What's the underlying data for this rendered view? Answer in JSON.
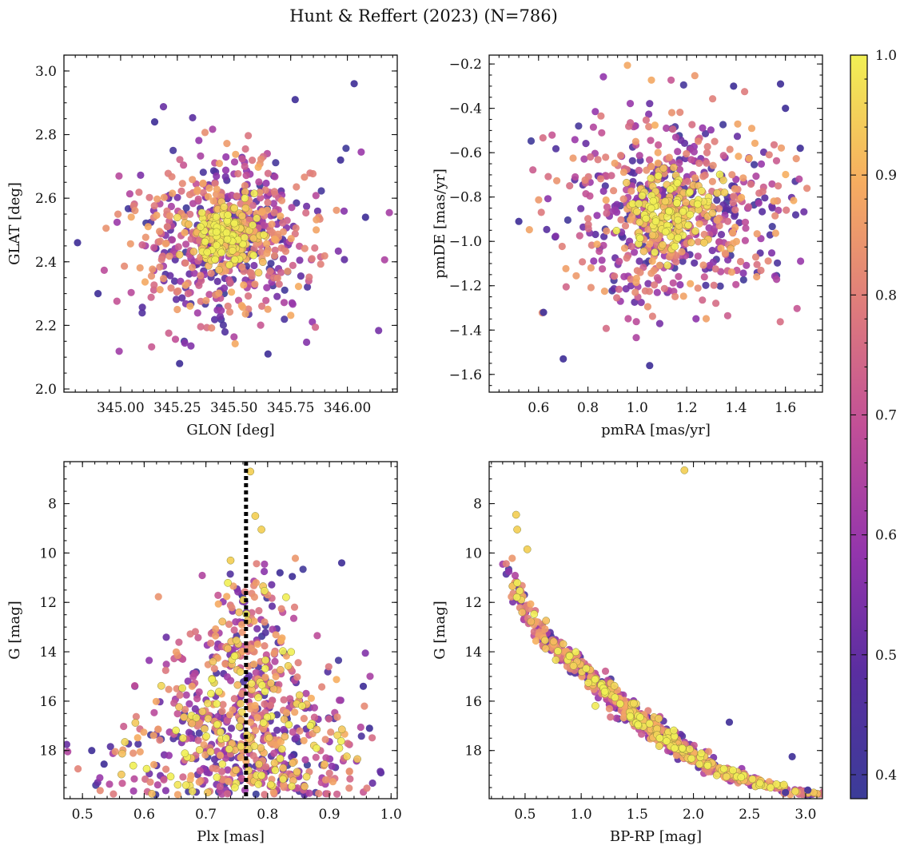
{
  "figure": {
    "title": "Hunt & Reffert (2023) (N=786)",
    "colorbar": {
      "min": 0.38,
      "max": 1.0,
      "ticks": [
        "0.4",
        "0.5",
        "0.6",
        "0.7",
        "0.8",
        "0.9",
        "1.0"
      ],
      "colormap": "plasma"
    }
  },
  "chart_data": [
    {
      "type": "scatter",
      "title": "",
      "xlabel": "GLON [deg]",
      "ylabel": "GLAT [deg]",
      "xlim": [
        344.75,
        346.22
      ],
      "ylim": [
        1.99,
        3.05
      ],
      "y_inverted": false,
      "xticks": [
        345.0,
        345.25,
        345.5,
        345.75,
        346.0
      ],
      "xtick_labels": [
        "345.00",
        "345.25",
        "345.50",
        "345.75",
        "346.00"
      ],
      "yticks": [
        2.0,
        2.2,
        2.4,
        2.6,
        2.8,
        3.0
      ],
      "ytick_labels": [
        "2.0",
        "2.2",
        "2.4",
        "2.6",
        "2.8",
        "3.0"
      ],
      "cluster_center": [
        345.47,
        2.48
      ],
      "cluster_spread": [
        0.21,
        0.13
      ],
      "core_spread": [
        0.07,
        0.05
      ],
      "n_points": 786,
      "color_variable": "membership probability (0.38–1.0)",
      "highlighted_points": [
        {
          "x": 346.03,
          "y": 2.96
        },
        {
          "x": 345.77,
          "y": 2.91
        },
        {
          "x": 345.15,
          "y": 2.84
        },
        {
          "x": 344.81,
          "y": 2.46
        },
        {
          "x": 344.9,
          "y": 2.3
        },
        {
          "x": 346.08,
          "y": 2.54
        },
        {
          "x": 345.26,
          "y": 2.08
        },
        {
          "x": 345.65,
          "y": 2.11
        },
        {
          "x": 345.97,
          "y": 2.72
        }
      ]
    },
    {
      "type": "scatter",
      "title": "",
      "xlabel": "pmRA [mas/yr]",
      "ylabel": "pmDE [mas/yr]",
      "xlim": [
        0.4,
        1.75
      ],
      "ylim": [
        -1.68,
        -0.16
      ],
      "y_inverted": false,
      "xticks": [
        0.6,
        0.8,
        1.0,
        1.2,
        1.4,
        1.6
      ],
      "xtick_labels": [
        "0.6",
        "0.8",
        "1.0",
        "1.2",
        "1.4",
        "1.6"
      ],
      "yticks": [
        -1.6,
        -1.4,
        -1.2,
        -1.0,
        -0.8,
        -0.6,
        -0.4,
        -0.2
      ],
      "ytick_labels": [
        "−1.6",
        "−1.4",
        "−1.2",
        "−1.0",
        "−0.8",
        "−0.6",
        "−0.4",
        "−0.2"
      ],
      "cluster_center": [
        1.13,
        -0.87
      ],
      "cluster_spread": [
        0.22,
        0.22
      ],
      "core_spread": [
        0.09,
        0.09
      ],
      "n_points": 786,
      "color_variable": "membership probability (0.38–1.0)",
      "highlighted_points": [
        {
          "x": 0.52,
          "y": -0.91
        },
        {
          "x": 0.7,
          "y": -1.53
        },
        {
          "x": 1.05,
          "y": -1.56
        },
        {
          "x": 1.58,
          "y": -0.29
        },
        {
          "x": 1.39,
          "y": -0.3
        },
        {
          "x": 1.66,
          "y": -0.58
        },
        {
          "x": 0.62,
          "y": -1.32
        },
        {
          "x": 1.6,
          "y": -0.4
        }
      ]
    },
    {
      "type": "scatter",
      "title": "",
      "xlabel": "Plx [mas]",
      "ylabel": "G [mag]",
      "xlim": [
        0.47,
        1.01
      ],
      "ylim": [
        6.3,
        19.95
      ],
      "y_inverted": true,
      "xticks": [
        0.5,
        0.6,
        0.7,
        0.8,
        0.9,
        1.0
      ],
      "xtick_labels": [
        "0.5",
        "0.6",
        "0.7",
        "0.8",
        "0.9",
        "1.0"
      ],
      "yticks": [
        8,
        10,
        12,
        14,
        16,
        18
      ],
      "ytick_labels": [
        "8",
        "10",
        "12",
        "14",
        "16",
        "18"
      ],
      "reference_line": {
        "x": 0.765,
        "style": "dotted",
        "color": "#000000"
      },
      "cluster_center": [
        0.765,
        16.0
      ],
      "n_points": 786,
      "color_variable": "membership probability (0.38–1.0)",
      "highlighted_points": [
        {
          "x": 0.772,
          "y": 6.7
        },
        {
          "x": 0.78,
          "y": 8.5
        },
        {
          "x": 0.79,
          "y": 9.05
        },
        {
          "x": 0.74,
          "y": 10.3
        },
        {
          "x": 0.92,
          "y": 10.4
        },
        {
          "x": 0.82,
          "y": 10.8
        },
        {
          "x": 0.84,
          "y": 10.95
        },
        {
          "x": 0.515,
          "y": 18.0
        },
        {
          "x": 0.535,
          "y": 18.55
        },
        {
          "x": 0.965,
          "y": 17.1
        },
        {
          "x": 0.955,
          "y": 15.4
        }
      ]
    },
    {
      "type": "scatter",
      "title": "",
      "xlabel": "BP-RP [mag]",
      "ylabel": "G [mag]",
      "xlim": [
        0.18,
        3.15
      ],
      "ylim": [
        6.3,
        19.95
      ],
      "y_inverted": true,
      "xticks": [
        0.5,
        1.0,
        1.5,
        2.0,
        2.5,
        3.0
      ],
      "xtick_labels": [
        "0.5",
        "1.0",
        "1.5",
        "2.0",
        "2.5",
        "3.0"
      ],
      "yticks": [
        8,
        10,
        12,
        14,
        16,
        18
      ],
      "ytick_labels": [
        "8",
        "10",
        "12",
        "14",
        "16",
        "18"
      ],
      "main_sequence": [
        {
          "x": 0.32,
          "y": 10.2
        },
        {
          "x": 0.45,
          "y": 11.8
        },
        {
          "x": 0.6,
          "y": 13.0
        },
        {
          "x": 0.8,
          "y": 13.9
        },
        {
          "x": 1.0,
          "y": 14.6
        },
        {
          "x": 1.2,
          "y": 15.5
        },
        {
          "x": 1.4,
          "y": 16.3
        },
        {
          "x": 1.6,
          "y": 17.0
        },
        {
          "x": 1.8,
          "y": 17.7
        },
        {
          "x": 2.0,
          "y": 18.3
        },
        {
          "x": 2.3,
          "y": 18.9
        },
        {
          "x": 2.6,
          "y": 19.4
        },
        {
          "x": 3.0,
          "y": 19.7
        }
      ],
      "n_points": 786,
      "color_variable": "membership probability (0.38–1.0)",
      "highlighted_points": [
        {
          "x": 1.92,
          "y": 6.65
        },
        {
          "x": 0.42,
          "y": 8.45
        },
        {
          "x": 0.43,
          "y": 9.05
        },
        {
          "x": 0.52,
          "y": 9.85
        },
        {
          "x": 2.88,
          "y": 18.25
        },
        {
          "x": 2.82,
          "y": 19.7
        },
        {
          "x": 3.02,
          "y": 19.6
        },
        {
          "x": 2.32,
          "y": 16.85
        }
      ]
    }
  ]
}
